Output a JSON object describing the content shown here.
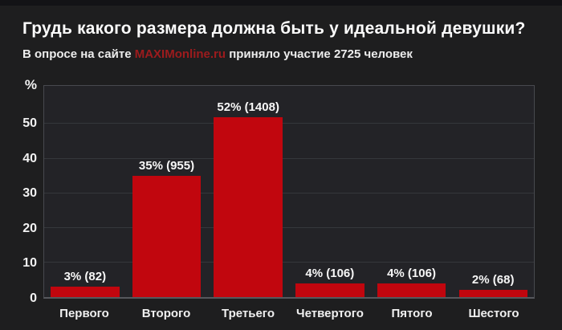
{
  "header": {
    "title": "Грудь какого размера должна быть у идеальной девушки?",
    "subtitle_prefix": "В опросе на сайте ",
    "subtitle_link": "MAXIMonline.ru",
    "subtitle_suffix": " приняло участие 2725 человек"
  },
  "colors": {
    "background": "#1e1e1f",
    "top_strip": "#131316",
    "plot_background": "#232327",
    "plot_border": "#47494e",
    "gridline": "#35373b",
    "bar": "#c1060e",
    "brand_red": "#9d1b1d",
    "text": "#f2f2f2"
  },
  "chart_data": {
    "type": "bar",
    "title": "Грудь какого размера должна быть у идеальной девушки?",
    "subtitle": "В опросе на сайте MAXIMonline.ru приняло участие 2725 человек",
    "total_respondents": 2725,
    "categories": [
      "Первого",
      "Второго",
      "Третьего",
      "Четвертого",
      "Пятого",
      "Шестого"
    ],
    "values": [
      3,
      35,
      52,
      4,
      4,
      2
    ],
    "counts": [
      82,
      955,
      1408,
      106,
      106,
      68
    ],
    "bar_labels": [
      "3% (82)",
      "35% (955)",
      "52% (1408)",
      "4% (106)",
      "4% (106)",
      "2% (68)"
    ],
    "xlabel": "",
    "ylabel": "%",
    "yticks": [
      0,
      10,
      20,
      30,
      40,
      50
    ],
    "ylim": [
      0,
      61
    ],
    "grid": true,
    "legend": false
  }
}
